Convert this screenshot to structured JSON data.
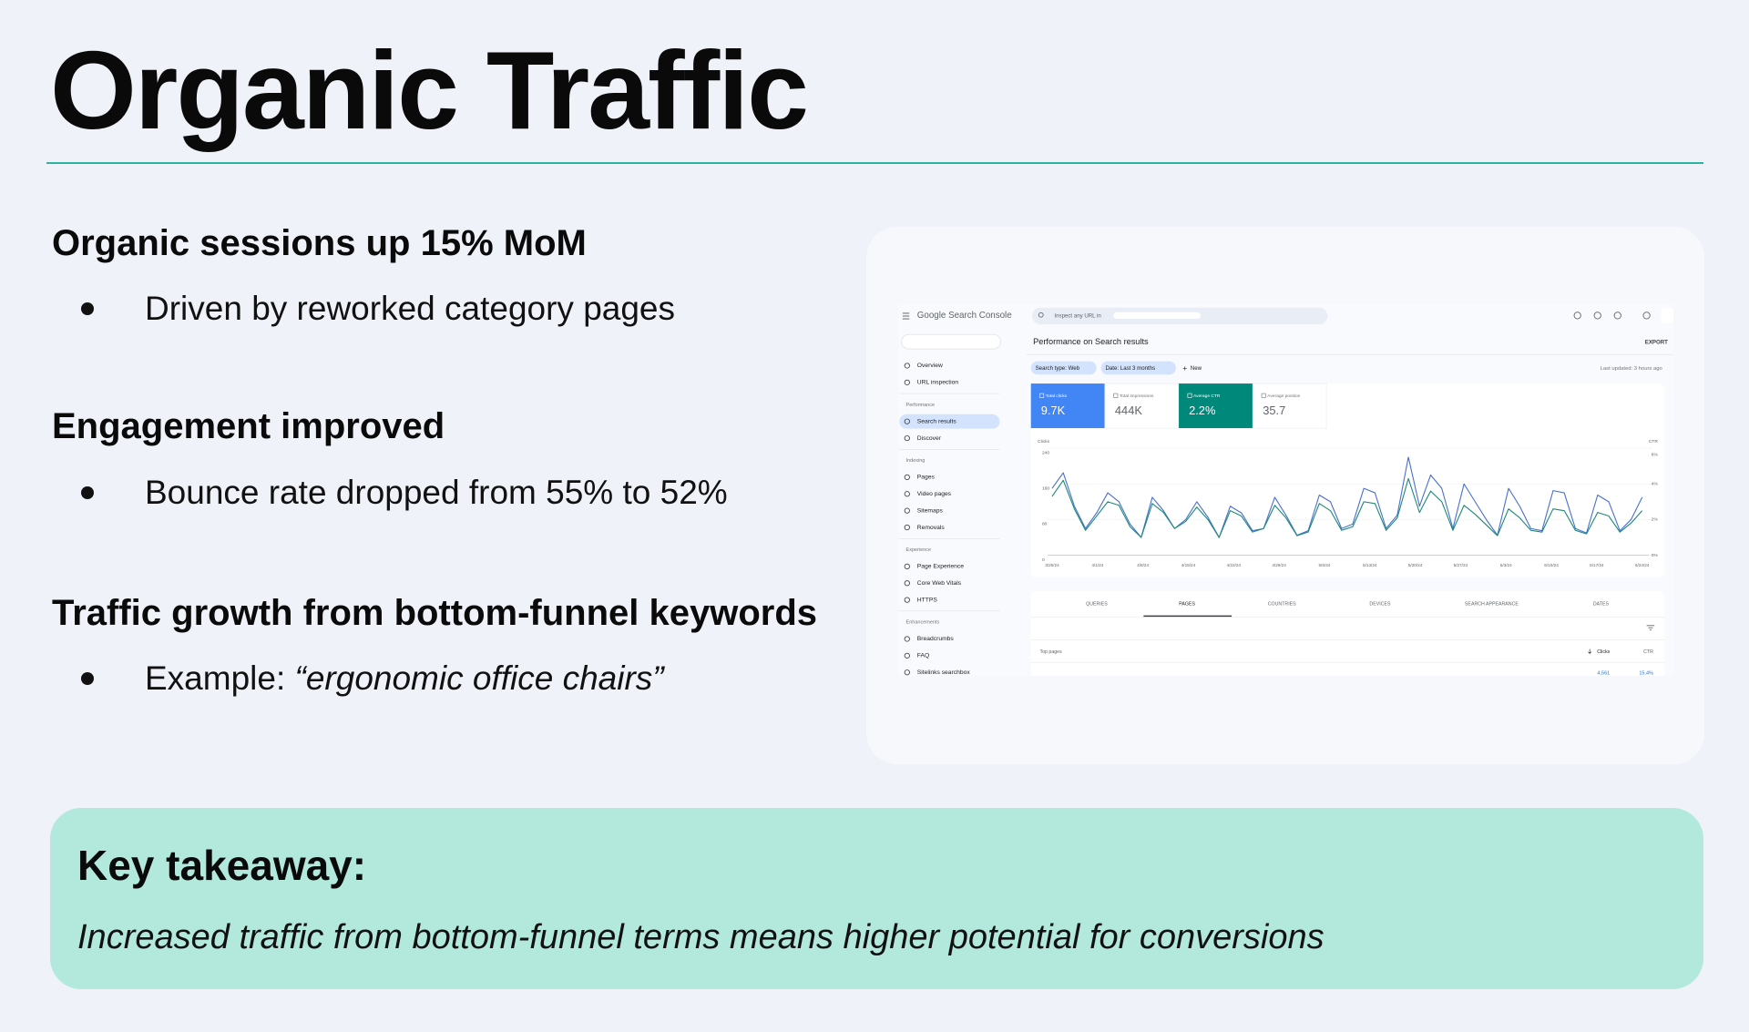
{
  "title": "Organic Traffic",
  "sections": [
    {
      "heading": "Organic sessions up 15% MoM",
      "bullet": "Driven by reworked category pages"
    },
    {
      "heading": "Engagement improved",
      "bullet": "Bounce rate dropped from 55% to 52%"
    },
    {
      "heading": "Traffic growth from bottom-funnel keywords",
      "bullet": "Example: ",
      "emphasis": "“ergonomic office chairs”"
    }
  ],
  "screenshot": {
    "product": "Google Search Console",
    "search_placeholder": "Inspect any URL in",
    "sidebar": [
      {
        "items": [
          "Overview",
          "URL inspection"
        ]
      },
      {
        "title": "Performance",
        "items": [
          "Search results",
          "Discover"
        ]
      },
      {
        "title": "Indexing",
        "items": [
          "Pages",
          "Video pages",
          "Sitemaps",
          "Removals"
        ]
      },
      {
        "title": "Experience",
        "items": [
          "Page Experience",
          "Core Web Vitals",
          "HTTPS"
        ]
      },
      {
        "title": "Enhancements",
        "items": [
          "Breadcrumbs",
          "FAQ",
          "Sitelinks searchbox"
        ]
      }
    ],
    "page_title": "Performance on Search results",
    "export": "EXPORT",
    "chips": [
      "Search type: Web",
      "Date: Last 3 months"
    ],
    "new_button": "New",
    "last_updated": "Last updated: 3 hours ago",
    "metrics": [
      {
        "label": "Total clicks",
        "value": "9.7K",
        "color": "#4285f4"
      },
      {
        "label": "Total impressions",
        "value": "444K"
      },
      {
        "label": "Average CTR",
        "value": "2.2%",
        "color": "#00897b"
      },
      {
        "label": "Average position",
        "value": "35.7"
      }
    ],
    "chart": {
      "type": "line",
      "y_label": "Clicks",
      "y2_label": "CTR",
      "ylim": [
        0,
        240
      ],
      "yticks": [
        0,
        80,
        160,
        240
      ],
      "y2lim": [
        0,
        6
      ],
      "y2ticks": [
        {
          "value": 0,
          "label": "0%"
        },
        {
          "value": 2,
          "label": "2%"
        },
        {
          "value": 4,
          "label": "4%"
        },
        {
          "value": 6,
          "label": "6%"
        }
      ],
      "x_labels": [
        "3/25/24",
        "4/1/24",
        "4/8/24",
        "4/15/24",
        "4/22/24",
        "4/29/24",
        "5/6/24",
        "5/13/24",
        "5/20/24",
        "5/27/24",
        "6/3/24",
        "6/10/24",
        "6/17/24",
        "6/24/24"
      ],
      "series": [
        {
          "color": "#4a6fd0",
          "values": [
            150,
            185,
            110,
            60,
            95,
            140,
            120,
            70,
            40,
            130,
            100,
            60,
            80,
            120,
            85,
            40,
            110,
            95,
            55,
            60,
            130,
            90,
            45,
            55,
            135,
            120,
            60,
            70,
            150,
            140,
            60,
            90,
            220,
            110,
            180,
            150,
            60,
            160,
            120,
            80,
            45,
            150,
            110,
            60,
            55,
            145,
            140,
            60,
            50,
            135,
            120,
            55,
            80,
            130
          ]
        },
        {
          "color": "#1a8a76",
          "axis": "y2",
          "values": [
            3.3,
            4.2,
            2.6,
            1.4,
            2.2,
            3.0,
            2.8,
            1.6,
            1.0,
            2.9,
            2.4,
            1.5,
            1.9,
            2.7,
            2.0,
            1.0,
            2.5,
            2.2,
            1.3,
            1.5,
            2.8,
            2.1,
            1.1,
            1.3,
            2.9,
            2.5,
            1.4,
            1.6,
            3.0,
            2.9,
            1.4,
            2.1,
            4.3,
            2.4,
            3.6,
            3.0,
            1.4,
            2.8,
            2.3,
            1.7,
            1.1,
            2.6,
            2.1,
            1.4,
            1.3,
            2.6,
            2.5,
            1.4,
            1.2,
            2.4,
            2.2,
            1.3,
            1.8,
            2.5
          ]
        }
      ]
    },
    "tabs": [
      "QUERIES",
      "PAGES",
      "COUNTRIES",
      "DEVICES",
      "SEARCH APPEARANCE",
      "DATES"
    ],
    "table": {
      "title": "Top pages",
      "columns": [
        "Clicks",
        "CTR"
      ],
      "row": [
        "4,561",
        "15.4%"
      ]
    }
  },
  "takeaway": {
    "heading": "Key takeaway:",
    "text": "Increased traffic from bottom-funnel terms means higher potential for conversions"
  }
}
